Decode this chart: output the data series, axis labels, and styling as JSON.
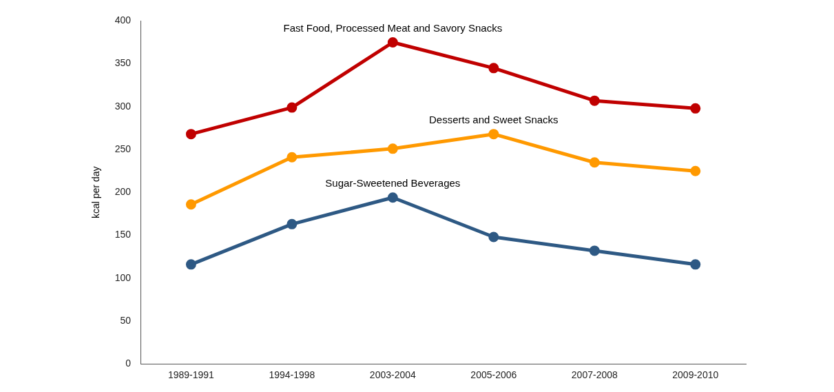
{
  "chart_data": {
    "type": "line",
    "ylabel": "kcal per day",
    "categories": [
      "1989-1991",
      "1994-1998",
      "2003-2004",
      "2005-2006",
      "2007-2008",
      "2009-2010"
    ],
    "series": [
      {
        "name": "Fast Food, Processed Meat and Savory Snacks",
        "color": "#c00000",
        "values": [
          268,
          299,
          375,
          345,
          307,
          298
        ]
      },
      {
        "name": "Desserts and Sweet Snacks",
        "color": "#ff9900",
        "values": [
          186,
          241,
          251,
          268,
          235,
          225
        ]
      },
      {
        "name": "Sugar-Sweetened Beverages",
        "color": "#2e5984",
        "values": [
          116,
          163,
          194,
          148,
          132,
          116
        ]
      }
    ],
    "ylim": [
      0,
      400
    ],
    "yticks": [
      0,
      50,
      100,
      150,
      200,
      250,
      300,
      350,
      400
    ],
    "grid": false,
    "legend": false,
    "marker": "circle",
    "line_style": "solid"
  }
}
